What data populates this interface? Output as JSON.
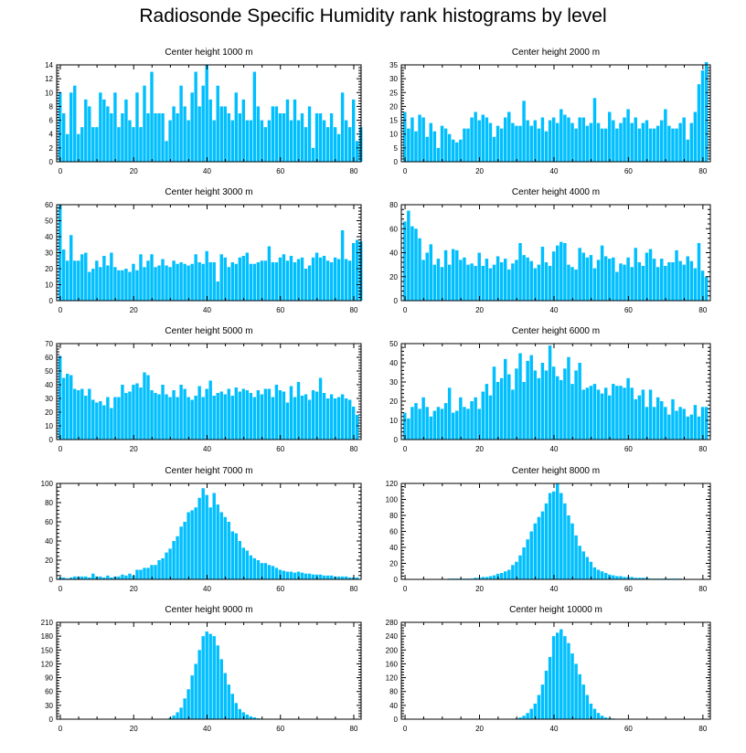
{
  "page_title": "Radiosonde Specific Humidity rank histograms by level",
  "chart_data": [
    {
      "type": "bar",
      "title": "Center height 1000 m",
      "xlabel": "",
      "ylabel": "",
      "xlim": [
        -1,
        82
      ],
      "ylim": [
        0,
        14
      ],
      "yticks": [
        0,
        2,
        4,
        6,
        8,
        10,
        12,
        14
      ],
      "xticks": [
        0,
        20,
        40,
        60,
        80
      ],
      "bar_color": "#00bfff",
      "values": [
        10,
        7,
        4,
        10,
        11,
        4,
        5,
        9,
        8,
        5,
        5,
        10,
        9,
        8,
        7,
        10,
        5,
        7,
        9,
        6,
        5,
        10,
        5,
        11,
        7,
        13,
        7,
        7,
        7,
        3,
        6,
        8,
        7,
        11,
        8,
        6,
        10,
        13,
        8,
        11,
        14,
        9,
        6,
        11,
        8,
        8,
        7,
        6,
        10,
        7,
        9,
        6,
        6,
        13,
        8,
        6,
        5,
        6,
        8,
        8,
        7,
        7,
        9,
        6,
        9,
        6,
        7,
        5,
        8,
        2,
        7,
        7,
        6,
        5,
        7,
        5,
        4,
        10,
        6,
        5,
        9,
        3,
        5
      ]
    },
    {
      "type": "bar",
      "title": "Center height 2000 m",
      "xlabel": "",
      "ylabel": "",
      "xlim": [
        -1,
        82
      ],
      "ylim": [
        0,
        35
      ],
      "yticks": [
        0,
        5,
        10,
        15,
        20,
        25,
        30,
        35
      ],
      "xticks": [
        0,
        20,
        40,
        60,
        80
      ],
      "bar_color": "#00bfff",
      "values": [
        18,
        12,
        16,
        11,
        17,
        16,
        9,
        14,
        11,
        5,
        13,
        12,
        10,
        8,
        7,
        8,
        12,
        12,
        16,
        18,
        15,
        17,
        16,
        14,
        9,
        13,
        12,
        16,
        18,
        14,
        13,
        13,
        22,
        15,
        13,
        15,
        12,
        16,
        11,
        15,
        16,
        14,
        19,
        17,
        16,
        14,
        12,
        16,
        16,
        13,
        14,
        23,
        14,
        12,
        12,
        18,
        15,
        12,
        14,
        16,
        19,
        14,
        16,
        12,
        14,
        15,
        12,
        12,
        13,
        15,
        19,
        13,
        12,
        12,
        14,
        16,
        8,
        14,
        18,
        28,
        33,
        36
      ]
    },
    {
      "type": "bar",
      "title": "Center height 3000 m",
      "xlabel": "",
      "ylabel": "",
      "xlim": [
        -1,
        82
      ],
      "ylim": [
        0,
        60
      ],
      "yticks": [
        0,
        10,
        20,
        30,
        40,
        50,
        60
      ],
      "xticks": [
        0,
        20,
        40,
        60,
        80
      ],
      "bar_color": "#00bfff",
      "values": [
        60,
        32,
        25,
        41,
        25,
        25,
        29,
        30,
        18,
        20,
        25,
        21,
        28,
        22,
        30,
        21,
        19,
        19,
        20,
        18,
        23,
        19,
        29,
        21,
        25,
        29,
        21,
        22,
        26,
        22,
        21,
        25,
        23,
        24,
        23,
        22,
        23,
        29,
        24,
        23,
        31,
        24,
        24,
        12,
        29,
        27,
        21,
        24,
        23,
        27,
        28,
        30,
        23,
        23,
        24,
        25,
        25,
        34,
        24,
        24,
        27,
        29,
        25,
        28,
        24,
        26,
        27,
        20,
        22,
        27,
        30,
        27,
        28,
        25,
        24,
        27,
        26,
        44,
        26,
        25,
        36,
        38,
        37
      ]
    },
    {
      "type": "bar",
      "title": "Center height 4000 m",
      "xlabel": "",
      "ylabel": "",
      "xlim": [
        -1,
        82
      ],
      "ylim": [
        0,
        80
      ],
      "yticks": [
        0,
        20,
        40,
        60,
        80
      ],
      "xticks": [
        0,
        20,
        40,
        60,
        80
      ],
      "bar_color": "#00bfff",
      "values": [
        66,
        75,
        62,
        60,
        52,
        34,
        40,
        47,
        30,
        35,
        28,
        42,
        30,
        43,
        42,
        34,
        36,
        30,
        31,
        29,
        40,
        29,
        35,
        27,
        30,
        37,
        32,
        35,
        26,
        31,
        34,
        48,
        38,
        36,
        33,
        27,
        30,
        45,
        32,
        29,
        41,
        46,
        49,
        48,
        30,
        28,
        26,
        44,
        40,
        36,
        38,
        27,
        34,
        46,
        37,
        35,
        36,
        24,
        31,
        30,
        36,
        28,
        44,
        32,
        29,
        40,
        43,
        35,
        28,
        35,
        29,
        32,
        32,
        42,
        33,
        30,
        37,
        33,
        27,
        48,
        25,
        20
      ]
    },
    {
      "type": "bar",
      "title": "Center height 5000 m",
      "xlabel": "",
      "ylabel": "",
      "xlim": [
        -1,
        82
      ],
      "ylim": [
        0,
        70
      ],
      "yticks": [
        0,
        10,
        20,
        30,
        40,
        50,
        60,
        70
      ],
      "xticks": [
        0,
        20,
        40,
        60,
        80
      ],
      "bar_color": "#00bfff",
      "values": [
        61,
        45,
        48,
        47,
        37,
        36,
        37,
        32,
        37,
        29,
        27,
        28,
        25,
        31,
        23,
        31,
        31,
        40,
        34,
        35,
        40,
        41,
        38,
        49,
        47,
        36,
        34,
        33,
        40,
        33,
        31,
        36,
        31,
        40,
        37,
        31,
        29,
        32,
        39,
        31,
        37,
        43,
        32,
        34,
        35,
        33,
        37,
        32,
        38,
        35,
        37,
        36,
        34,
        31,
        36,
        33,
        37,
        37,
        31,
        40,
        36,
        35,
        27,
        39,
        31,
        42,
        32,
        33,
        29,
        36,
        35,
        45,
        34,
        30,
        33,
        30,
        31,
        33,
        30,
        29,
        24,
        18
      ]
    },
    {
      "type": "bar",
      "title": "Center height 6000 m",
      "xlabel": "",
      "ylabel": "",
      "xlim": [
        -1,
        82
      ],
      "ylim": [
        0,
        50
      ],
      "yticks": [
        0,
        10,
        20,
        30,
        40,
        50
      ],
      "xticks": [
        0,
        20,
        40,
        60,
        80
      ],
      "bar_color": "#00bfff",
      "values": [
        14,
        11,
        17,
        19,
        16,
        22,
        17,
        12,
        15,
        17,
        16,
        19,
        27,
        14,
        15,
        22,
        17,
        16,
        20,
        22,
        16,
        25,
        29,
        23,
        38,
        30,
        32,
        42,
        34,
        26,
        37,
        45,
        30,
        41,
        44,
        36,
        32,
        40,
        36,
        49,
        38,
        33,
        31,
        37,
        43,
        29,
        36,
        40,
        26,
        27,
        28,
        29,
        26,
        24,
        27,
        23,
        29,
        28,
        28,
        27,
        32,
        27,
        21,
        23,
        26,
        17,
        26,
        17,
        22,
        20,
        17,
        13,
        21,
        15,
        17,
        16,
        12,
        13,
        18,
        12,
        17,
        17
      ]
    },
    {
      "type": "bar",
      "title": "Center height 7000 m",
      "xlabel": "",
      "ylabel": "",
      "xlim": [
        -1,
        82
      ],
      "ylim": [
        0,
        100
      ],
      "yticks": [
        0,
        20,
        40,
        60,
        80,
        100
      ],
      "xticks": [
        0,
        20,
        40,
        60,
        80
      ],
      "bar_color": "#00bfff",
      "values": [
        2,
        2,
        1,
        2,
        3,
        3,
        3,
        3,
        2,
        6,
        3,
        3,
        2,
        4,
        2,
        3,
        3,
        5,
        4,
        6,
        4,
        10,
        10,
        12,
        12,
        15,
        15,
        20,
        22,
        28,
        32,
        40,
        45,
        55,
        60,
        70,
        72,
        75,
        85,
        95,
        88,
        75,
        90,
        78,
        70,
        65,
        60,
        50,
        48,
        40,
        33,
        30,
        25,
        22,
        20,
        17,
        17,
        15,
        14,
        12,
        10,
        9,
        8,
        8,
        7,
        8,
        7,
        6,
        6,
        5,
        5,
        5,
        4,
        4,
        4,
        3,
        3,
        3,
        3,
        2,
        2,
        2
      ]
    },
    {
      "type": "bar",
      "title": "Center height 8000 m",
      "xlabel": "",
      "ylabel": "",
      "xlim": [
        -1,
        82
      ],
      "ylim": [
        0,
        120
      ],
      "yticks": [
        0,
        20,
        40,
        60,
        80,
        100,
        120
      ],
      "xticks": [
        0,
        20,
        40,
        60,
        80
      ],
      "bar_color": "#00bfff",
      "values": [
        0,
        0,
        0,
        0,
        0,
        0,
        0,
        0,
        0,
        0,
        0,
        0,
        1,
        1,
        1,
        1,
        1,
        1,
        1,
        2,
        2,
        3,
        3,
        4,
        5,
        7,
        8,
        10,
        12,
        18,
        22,
        30,
        40,
        50,
        60,
        70,
        78,
        85,
        95,
        108,
        110,
        120,
        108,
        95,
        80,
        70,
        55,
        42,
        35,
        28,
        22,
        15,
        12,
        10,
        8,
        6,
        5,
        4,
        4,
        3,
        3,
        3,
        2,
        2,
        2,
        2,
        1,
        1,
        1,
        1,
        1,
        1,
        1,
        1,
        1,
        0,
        0,
        0,
        0,
        0,
        0,
        0
      ]
    },
    {
      "type": "bar",
      "title": "Center height 9000 m",
      "xlabel": "",
      "ylabel": "",
      "xlim": [
        -1,
        82
      ],
      "ylim": [
        0,
        210
      ],
      "yticks": [
        0,
        30,
        60,
        90,
        120,
        150,
        180,
        210
      ],
      "xticks": [
        0,
        20,
        40,
        60,
        80
      ],
      "bar_color": "#00bfff",
      "values": [
        0,
        0,
        0,
        0,
        0,
        0,
        0,
        0,
        0,
        0,
        0,
        0,
        0,
        0,
        0,
        0,
        0,
        0,
        0,
        0,
        0,
        0,
        0,
        0,
        0,
        0,
        0,
        0,
        0,
        1,
        3,
        8,
        15,
        25,
        45,
        65,
        95,
        120,
        150,
        180,
        190,
        185,
        180,
        160,
        130,
        100,
        75,
        55,
        35,
        22,
        15,
        10,
        6,
        4,
        2,
        1,
        1,
        1,
        0,
        0,
        0,
        0,
        0,
        0,
        0,
        0,
        0,
        0,
        0,
        0,
        0,
        0,
        0,
        0,
        0,
        0,
        0,
        0,
        0,
        0,
        0,
        0
      ]
    },
    {
      "type": "bar",
      "title": "Center height 10000 m",
      "xlabel": "",
      "ylabel": "",
      "xlim": [
        -1,
        82
      ],
      "ylim": [
        0,
        280
      ],
      "yticks": [
        0,
        40,
        80,
        120,
        160,
        200,
        240,
        280
      ],
      "xticks": [
        0,
        20,
        40,
        60,
        80
      ],
      "bar_color": "#00bfff",
      "values": [
        0,
        0,
        0,
        0,
        0,
        0,
        0,
        0,
        0,
        0,
        0,
        0,
        0,
        0,
        0,
        0,
        0,
        0,
        0,
        0,
        0,
        0,
        0,
        0,
        0,
        0,
        0,
        0,
        0,
        1,
        2,
        5,
        10,
        18,
        30,
        45,
        70,
        100,
        140,
        180,
        240,
        250,
        260,
        240,
        220,
        190,
        160,
        130,
        100,
        70,
        45,
        30,
        18,
        10,
        5,
        3,
        2,
        1,
        1,
        0,
        0,
        0,
        0,
        0,
        0,
        0,
        0,
        0,
        0,
        0,
        0,
        0,
        0,
        0,
        0,
        0,
        0,
        0,
        0,
        0,
        0,
        0
      ]
    }
  ]
}
